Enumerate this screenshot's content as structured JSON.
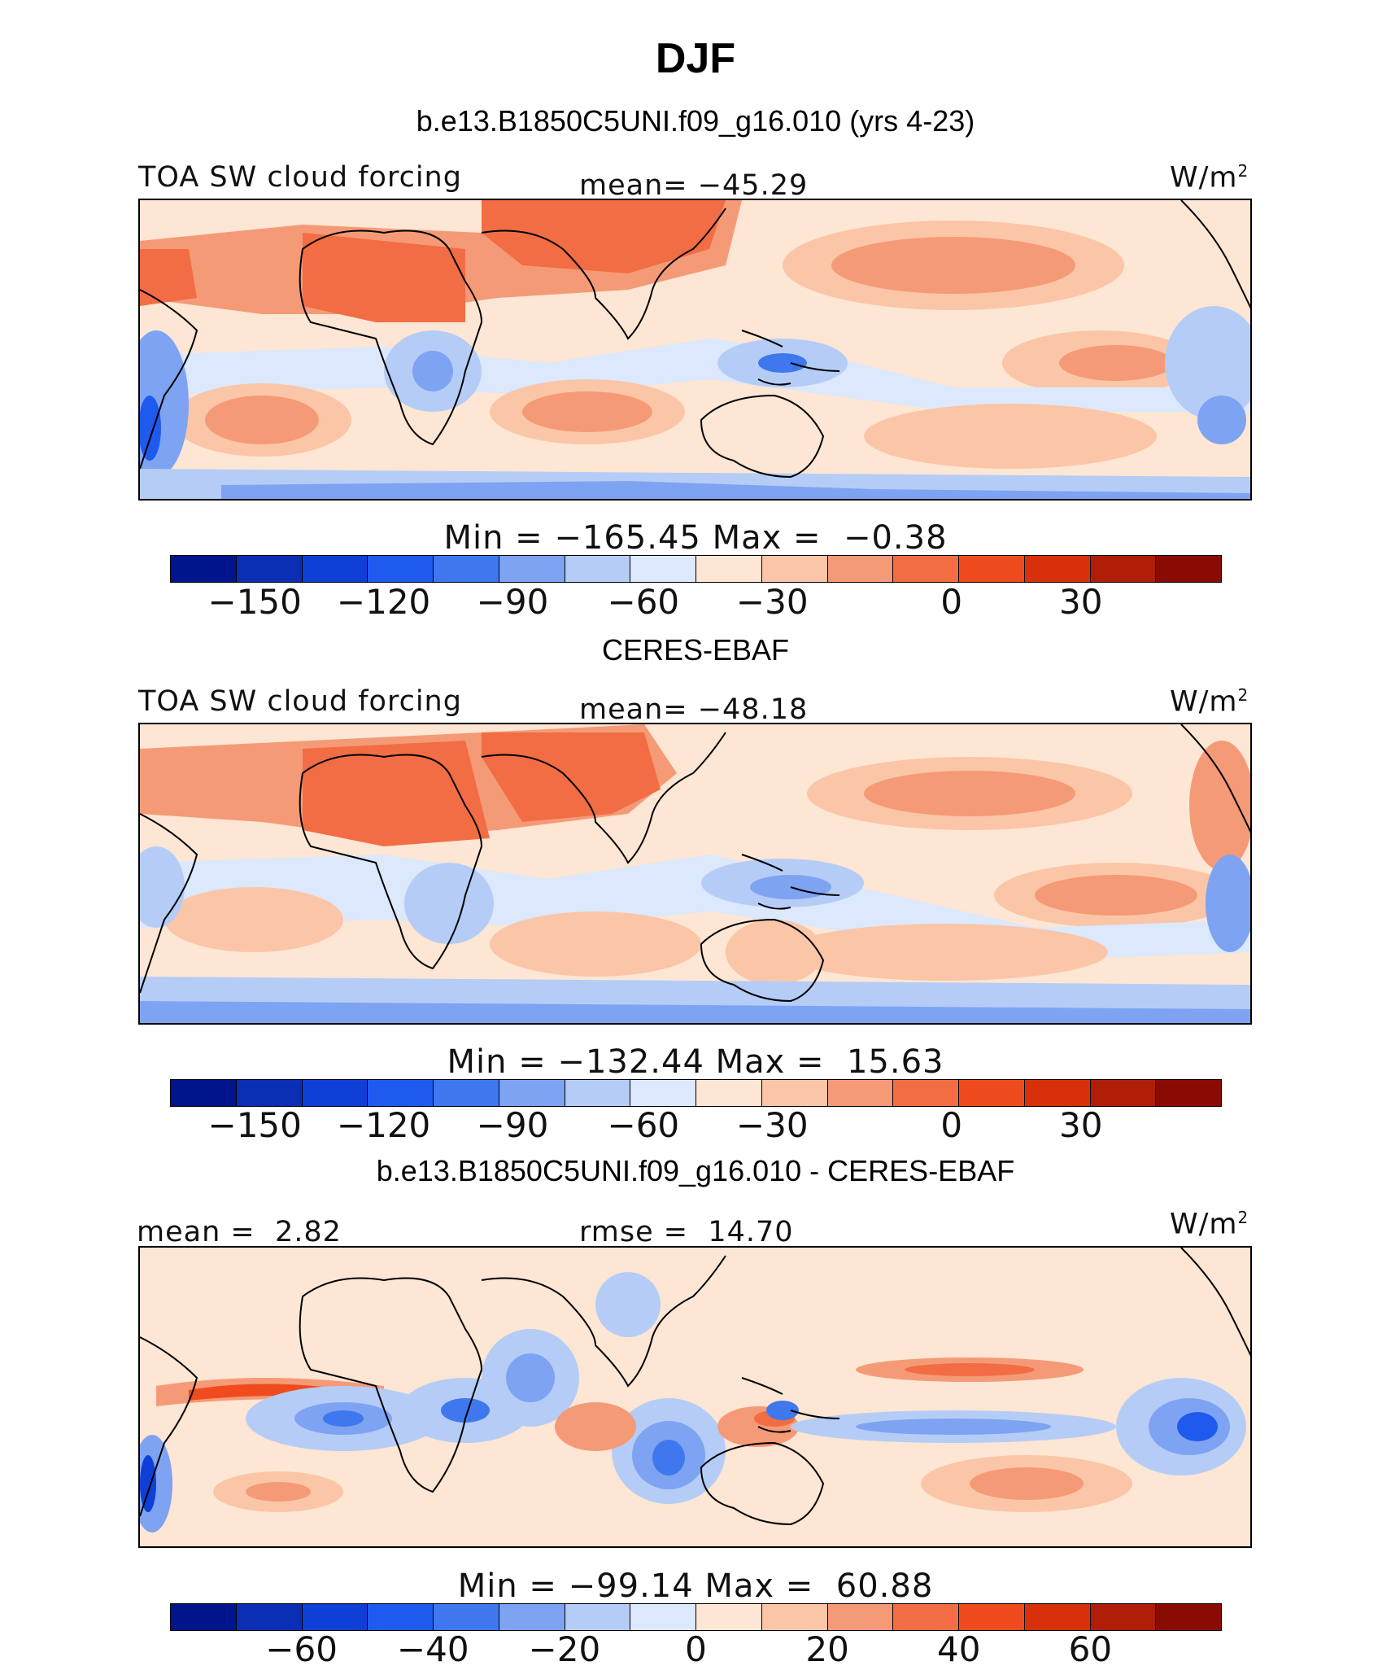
{
  "title": "DJF",
  "panel1": {
    "header": "b.e13.B1850C5UNI.f09_g16.010 (yrs 4-23)",
    "left_label": "TOA SW cloud forcing",
    "center_label": "mean= −45.29",
    "unit": "W/m",
    "unit_sup": "2",
    "minmax": "Min = −165.45 Max =  −0.38",
    "ticks": [
      "−150",
      "−120",
      "−90",
      "−60",
      "−30",
      "0",
      "30"
    ]
  },
  "panel2": {
    "header": "CERES-EBAF",
    "left_label": "TOA SW cloud forcing",
    "center_label": "mean= −48.18",
    "unit": "W/m",
    "unit_sup": "2",
    "minmax": "Min = −132.44 Max =  15.63",
    "ticks": [
      "−150",
      "−120",
      "−90",
      "−60",
      "−30",
      "0",
      "30"
    ]
  },
  "panel3": {
    "header": "b.e13.B1850C5UNI.f09_g16.010 - CERES-EBAF",
    "left_label": "mean =  2.82",
    "center_label": "rmse =  14.70",
    "unit": "W/m",
    "unit_sup": "2",
    "minmax": "Min = −99.14 Max =  60.88",
    "ticks": [
      "−60",
      "−40",
      "−20",
      "0",
      "20",
      "40",
      "60"
    ]
  },
  "colorbar": [
    "#00148c",
    "#0a2eb4",
    "#0e3fd6",
    "#1f5aee",
    "#3f78ee",
    "#7ea3f2",
    "#b5cdf6",
    "#dce8fb",
    "#fde6d4",
    "#fbc6a8",
    "#f59a77",
    "#f26d44",
    "#ef4b1e",
    "#d9300c",
    "#b01e08",
    "#8a0b04"
  ]
}
